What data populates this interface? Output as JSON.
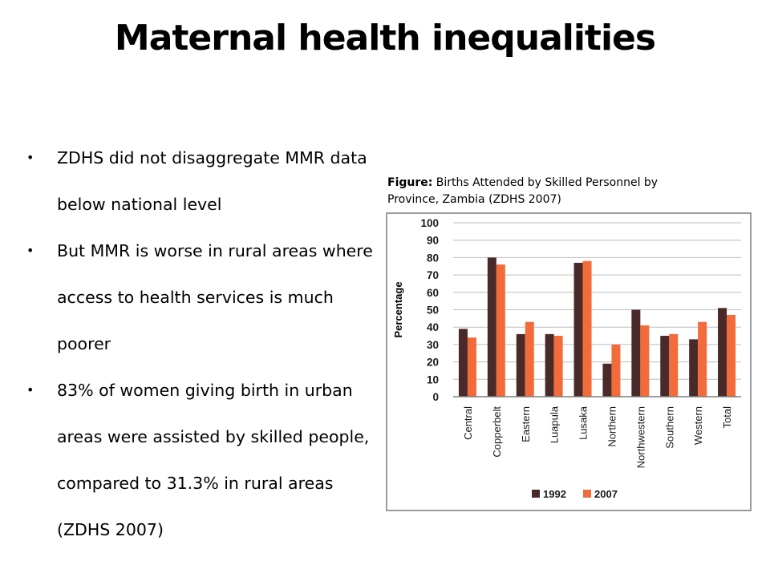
{
  "slide": {
    "title": "Maternal health inequalities",
    "bullets": [
      "ZDHS  did not disaggregate MMR data below national level",
      "But MMR is worse in rural areas where access to health services is much poorer",
      "83% of women giving birth in urban areas were assisted by skilled people, compared to 31.3% in rural areas (ZDHS 2007)"
    ],
    "caption_label": "Figure:",
    "caption_text": " Births Attended by Skilled Personnel by Province, Zambia (ZDHS 2007)"
  },
  "chart_data": {
    "type": "bar",
    "title": "",
    "xlabel": "",
    "ylabel": "Percentage",
    "ylim": [
      0,
      100
    ],
    "yticks": [
      0,
      10,
      20,
      30,
      40,
      50,
      60,
      70,
      80,
      90,
      100
    ],
    "grid": true,
    "legend_position": "bottom",
    "categories": [
      "Central",
      "Copperbelt",
      "Eastern",
      "Luapula",
      "Lusaka",
      "Northern",
      "Northwestern",
      "Southern",
      "Western",
      "Total"
    ],
    "series": [
      {
        "name": "1992",
        "color": "#4a2a28",
        "values": [
          39,
          80,
          36,
          36,
          77,
          19,
          50,
          35,
          33,
          51
        ]
      },
      {
        "name": "2007",
        "color": "#f26b3a",
        "values": [
          34,
          76,
          43,
          35,
          78,
          30,
          41,
          36,
          43,
          47
        ]
      }
    ]
  }
}
